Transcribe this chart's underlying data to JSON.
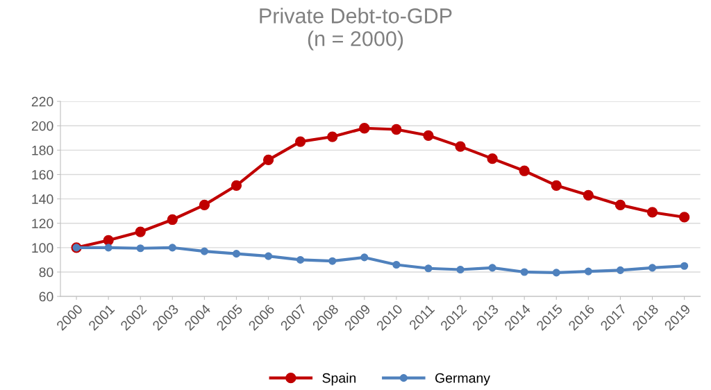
{
  "chart_data": {
    "type": "line",
    "title": "Private Debt-to-GDP\n(n = 2000)",
    "categories": [
      "2000",
      "2001",
      "2002",
      "2003",
      "2004",
      "2005",
      "2006",
      "2007",
      "2008",
      "2009",
      "2010",
      "2011",
      "2012",
      "2013",
      "2014",
      "2015",
      "2016",
      "2017",
      "2018",
      "2019"
    ],
    "series": [
      {
        "name": "Spain",
        "color": "#c00000",
        "values": [
          100,
          106,
          113,
          123,
          135,
          151,
          172,
          187,
          191,
          198,
          197,
          192,
          183,
          173,
          163,
          151,
          143,
          135,
          129,
          125
        ]
      },
      {
        "name": "Germany",
        "color": "#4f81bd",
        "values": [
          100,
          100,
          99.5,
          100,
          97,
          95,
          93,
          90,
          89,
          92,
          86,
          83,
          82,
          83.5,
          80,
          79.5,
          80.5,
          81.5,
          83.5,
          85
        ]
      }
    ],
    "ylim": [
      60,
      220
    ],
    "yticks": [
      60,
      80,
      100,
      120,
      140,
      160,
      180,
      200,
      220
    ],
    "grid": "y",
    "legend": "bottom",
    "marker": "circle",
    "line_style": "solid"
  }
}
